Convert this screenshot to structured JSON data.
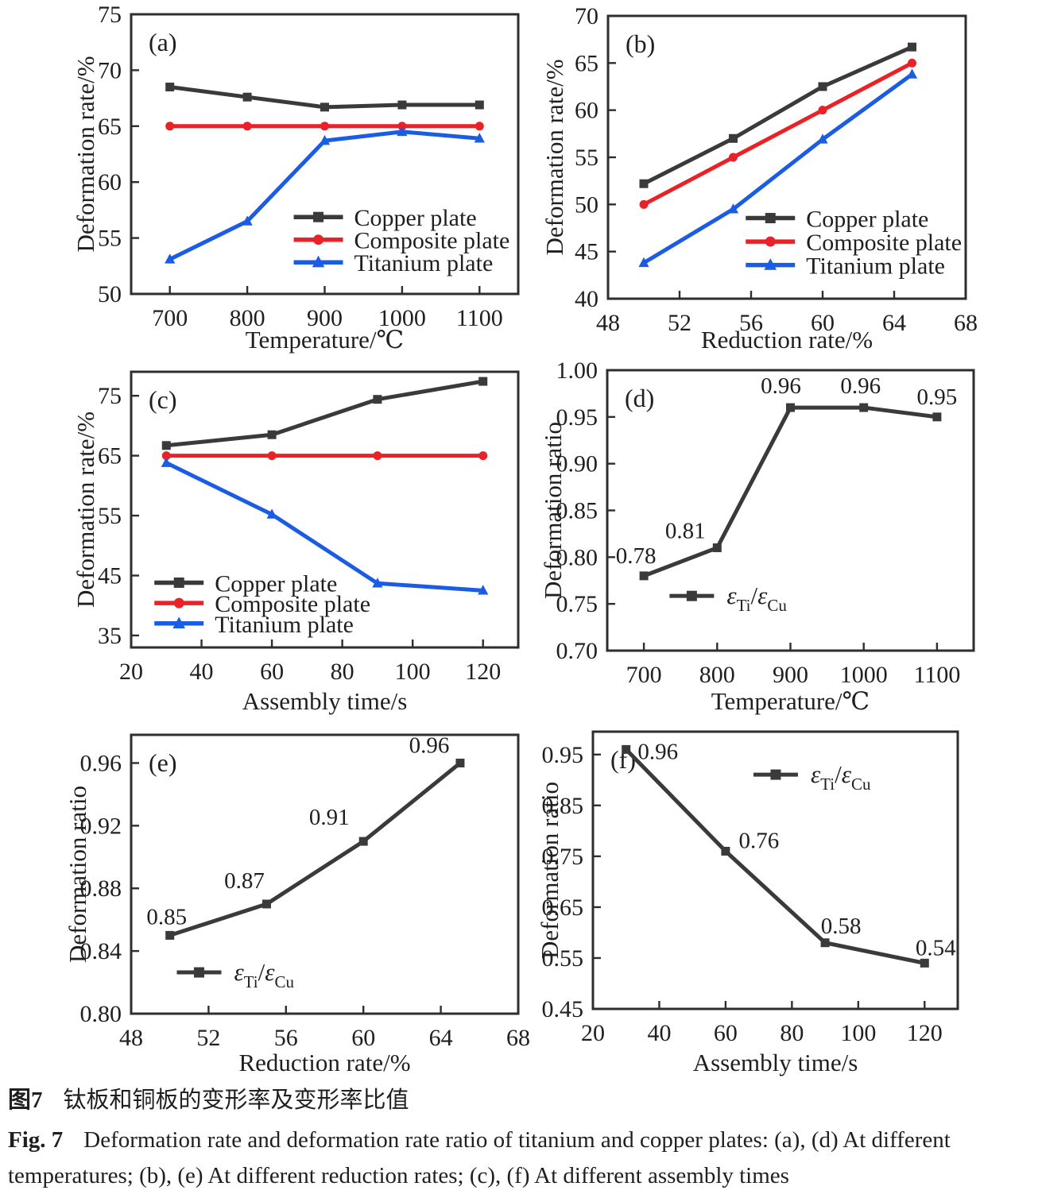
{
  "figure": {
    "caption_cn_label": "图7",
    "caption_cn_text": "钛板和铜板的变形率及变形率比值",
    "caption_en_label": "Fig. 7",
    "caption_en_text": "Deformation rate and deformation rate ratio of titanium and copper plates: (a), (d) At different temperatures; (b), (e) At different reduction rates; (c), (f) At different assembly times"
  },
  "colors": {
    "copper": "#3a3a3a",
    "composite": "#ea2227",
    "titanium": "#1b5ce4",
    "axis": "#2e2e2e",
    "text": "#1f1f1f"
  },
  "chart_data": [
    {
      "id": "a",
      "panel_label": "(a)",
      "type": "line",
      "xlabel": "Temperature/℃",
      "ylabel": "Deformation rate/%",
      "xlim": [
        650,
        1150
      ],
      "ylim": [
        50,
        75
      ],
      "xticks": [
        700,
        800,
        900,
        1000,
        1100
      ],
      "xtick_labels": [
        "700",
        "800",
        "900",
        "1000",
        "1100"
      ],
      "yticks": [
        50,
        55,
        60,
        65,
        70,
        75
      ],
      "ytick_labels": [
        "50",
        "55",
        "60",
        "65",
        "70",
        "75"
      ],
      "grid": false,
      "legend": {
        "x": 0.42,
        "y": 0.725,
        "row_gap": 0.081
      },
      "series": [
        {
          "name": "Copper plate",
          "color": "copper",
          "marker": "square",
          "x": [
            700,
            800,
            900,
            1000,
            1100
          ],
          "y": [
            68.5,
            67.6,
            66.7,
            66.9,
            66.9
          ]
        },
        {
          "name": "Composite plate",
          "color": "composite",
          "marker": "circle",
          "x": [
            700,
            800,
            900,
            1000,
            1100
          ],
          "y": [
            65,
            65,
            65,
            65,
            65
          ]
        },
        {
          "name": "Titanium plate",
          "color": "titanium",
          "marker": "triangle",
          "x": [
            700,
            800,
            900,
            1000,
            1100
          ],
          "y": [
            53.1,
            56.5,
            63.7,
            64.5,
            63.9
          ]
        }
      ]
    },
    {
      "id": "b",
      "panel_label": "(b)",
      "type": "line",
      "xlabel": "Reduction rate/%",
      "ylabel": "Deformation rate/%",
      "xlim": [
        48,
        68
      ],
      "ylim": [
        40,
        70
      ],
      "xticks": [
        48,
        52,
        56,
        60,
        64,
        68
      ],
      "xtick_labels": [
        "48",
        "52",
        "56",
        "60",
        "64",
        "68"
      ],
      "yticks": [
        40,
        45,
        50,
        55,
        60,
        65,
        70
      ],
      "ytick_labels": [
        "40",
        "45",
        "50",
        "55",
        "60",
        "65",
        "70"
      ],
      "grid": false,
      "legend": {
        "x": 0.385,
        "y": 0.715,
        "row_gap": 0.083
      },
      "series": [
        {
          "name": "Copper plate",
          "color": "copper",
          "marker": "square",
          "x": [
            50,
            55,
            60,
            65
          ],
          "y": [
            52.2,
            57.0,
            62.5,
            66.7
          ]
        },
        {
          "name": "Composite plate",
          "color": "composite",
          "marker": "circle",
          "x": [
            50,
            55,
            60,
            65
          ],
          "y": [
            50,
            55,
            60,
            65
          ]
        },
        {
          "name": "Titanium plate",
          "color": "titanium",
          "marker": "triangle",
          "x": [
            50,
            55,
            60,
            65
          ],
          "y": [
            43.8,
            49.5,
            56.9,
            63.8
          ]
        }
      ]
    },
    {
      "id": "c",
      "panel_label": "(c)",
      "type": "line",
      "xlabel": "Assembly time/s",
      "ylabel": "Deformation rate/%",
      "xlim": [
        20,
        130
      ],
      "ylim": [
        33,
        79
      ],
      "xticks": [
        20,
        40,
        60,
        80,
        100,
        120
      ],
      "xtick_labels": [
        "20",
        "40",
        "60",
        "80",
        "100",
        "120"
      ],
      "yticks": [
        35,
        45,
        55,
        65,
        75
      ],
      "ytick_labels": [
        "35",
        "45",
        "55",
        "65",
        "75"
      ],
      "grid": false,
      "legend": {
        "x": 0.06,
        "y": 0.765,
        "row_gap": 0.074
      },
      "series": [
        {
          "name": "Copper plate",
          "color": "copper",
          "marker": "square",
          "x": [
            30,
            60,
            90,
            120
          ],
          "y": [
            66.7,
            68.5,
            74.4,
            77.4
          ]
        },
        {
          "name": "Composite plate",
          "color": "composite",
          "marker": "circle",
          "x": [
            30,
            60,
            90,
            120
          ],
          "y": [
            65,
            65,
            65,
            65
          ]
        },
        {
          "name": "Titanium plate",
          "color": "titanium",
          "marker": "triangle",
          "x": [
            30,
            60,
            90,
            120
          ],
          "y": [
            63.8,
            55.2,
            43.7,
            42.5
          ]
        }
      ]
    },
    {
      "id": "d",
      "panel_label": "(d)",
      "type": "line",
      "xlabel": "Temperature/℃",
      "ylabel": "Deformation ratio",
      "xlim": [
        650,
        1150
      ],
      "ylim": [
        0.7,
        1.0
      ],
      "xticks": [
        700,
        800,
        900,
        1000,
        1100
      ],
      "xtick_labels": [
        "700",
        "800",
        "900",
        "1000",
        "1100"
      ],
      "yticks": [
        0.7,
        0.75,
        0.8,
        0.85,
        0.9,
        0.95,
        1.0
      ],
      "ytick_labels": [
        "0.70",
        "0.75",
        "0.80",
        "0.85",
        "0.90",
        "0.95",
        "1.00"
      ],
      "grid": false,
      "legend": {
        "x": 0.17,
        "y": 0.805,
        "label_parts": [
          [
            "ε",
            "i"
          ],
          [
            "Ti",
            "s"
          ],
          [
            "/",
            ""
          ],
          [
            "ε",
            "i"
          ],
          [
            "Cu",
            "s"
          ]
        ],
        "label_text": "εTi/εCu"
      },
      "series": [
        {
          "name": "deformation-ratio",
          "color": "copper",
          "marker": "square",
          "x": [
            700,
            800,
            900,
            1000,
            1100
          ],
          "y": [
            0.78,
            0.81,
            0.96,
            0.96,
            0.95
          ],
          "point_labels": [
            "0.78",
            "0.81",
            "0.96",
            "0.96",
            "0.95"
          ],
          "label_offsets": [
            [
              -10,
              -16
            ],
            [
              -40,
              -12
            ],
            [
              -12,
              -18
            ],
            [
              -4,
              -18
            ],
            [
              0,
              -16
            ]
          ]
        }
      ]
    },
    {
      "id": "e",
      "panel_label": "(e)",
      "type": "line",
      "xlabel": "Reduction rate/%",
      "ylabel": "Deformation ratio",
      "xlim": [
        48,
        68
      ],
      "ylim": [
        0.8,
        0.978
      ],
      "xticks": [
        48,
        52,
        56,
        60,
        64,
        68
      ],
      "xtick_labels": [
        "48",
        "52",
        "56",
        "60",
        "64",
        "68"
      ],
      "yticks": [
        0.8,
        0.84,
        0.88,
        0.92,
        0.96
      ],
      "ytick_labels": [
        "0.80",
        "0.84",
        "0.88",
        "0.92",
        "0.96"
      ],
      "grid": false,
      "legend": {
        "x": 0.118,
        "y": 0.852,
        "label_parts": [
          [
            "ε",
            "i"
          ],
          [
            "Ti",
            "s"
          ],
          [
            "/",
            ""
          ],
          [
            "ε",
            "i"
          ],
          [
            "Cu",
            "s"
          ]
        ],
        "label_text": "εTi/εCu"
      },
      "series": [
        {
          "name": "deformation-ratio",
          "color": "copper",
          "marker": "square",
          "x": [
            50,
            55,
            60,
            65
          ],
          "y": [
            0.85,
            0.87,
            0.91,
            0.96
          ],
          "point_labels": [
            "0.85",
            "0.87",
            "0.91",
            "0.96"
          ],
          "label_offsets": [
            [
              -4,
              -14
            ],
            [
              -28,
              -20
            ],
            [
              -43,
              -21
            ],
            [
              -39,
              -13
            ]
          ]
        }
      ]
    },
    {
      "id": "f",
      "panel_label": "(f)",
      "type": "line",
      "xlabel": "Assembly time/s",
      "ylabel": "Deformation ratio",
      "xlim": [
        20,
        130
      ],
      "ylim": [
        0.45,
        0.995
      ],
      "xticks": [
        20,
        40,
        60,
        80,
        100,
        120
      ],
      "xtick_labels": [
        "20",
        "40",
        "60",
        "80",
        "100",
        "120"
      ],
      "yticks": [
        0.45,
        0.55,
        0.65,
        0.75,
        0.85,
        0.95
      ],
      "ytick_labels": [
        "0.45",
        "0.55",
        "0.65",
        "0.75",
        "0.85",
        "0.95"
      ],
      "grid": false,
      "legend": {
        "x": 0.44,
        "y": 0.155,
        "label_parts": [
          [
            "ε",
            "i"
          ],
          [
            "Ti",
            "s"
          ],
          [
            "/",
            ""
          ],
          [
            "ε",
            "i"
          ],
          [
            "Cu",
            "s"
          ]
        ],
        "label_text": "εTi/εCu"
      },
      "series": [
        {
          "name": "deformation-ratio",
          "color": "copper",
          "marker": "square",
          "x": [
            30,
            60,
            90,
            120
          ],
          "y": [
            0.96,
            0.76,
            0.58,
            0.54
          ],
          "point_labels": [
            "0.96",
            "0.76",
            "0.58",
            "0.54"
          ],
          "label_offsets": [
            [
              40,
              12
            ],
            [
              42,
              -4
            ],
            [
              20,
              -12
            ],
            [
              14,
              -10
            ]
          ]
        }
      ]
    }
  ]
}
